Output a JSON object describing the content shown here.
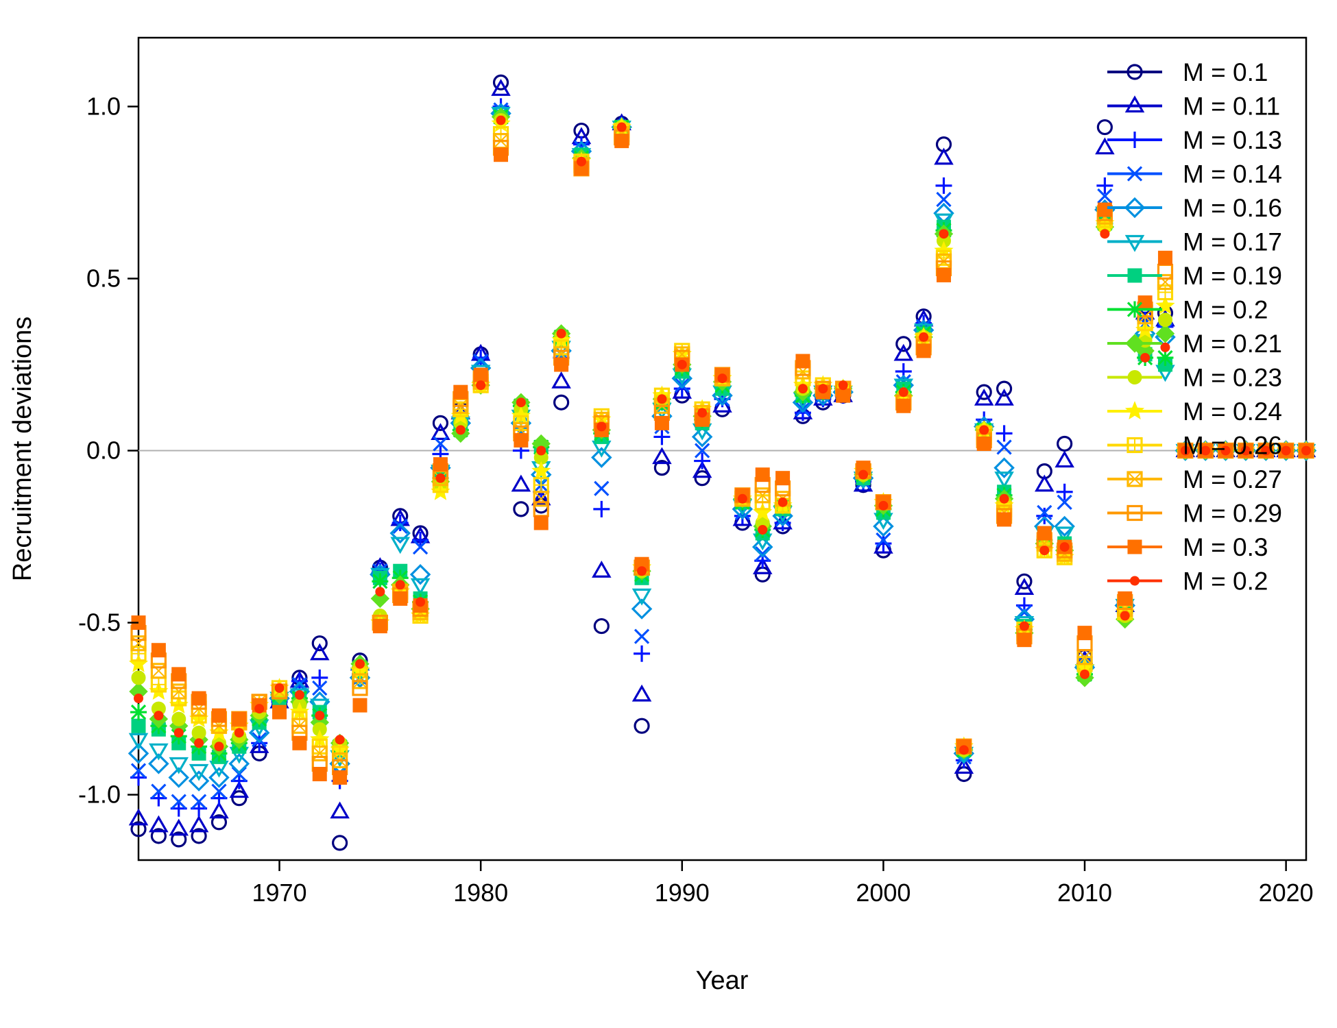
{
  "chart_data": {
    "type": "scatter",
    "title": "",
    "xlabel": "Year",
    "ylabel": "Recruitment deviations",
    "xlim": [
      1963,
      2021
    ],
    "ylim": [
      -1.19,
      1.2
    ],
    "x_ticks": [
      1970,
      1980,
      1990,
      2000,
      2010,
      2020
    ],
    "y_ticks": [
      -1.0,
      -0.5,
      0.0,
      0.5,
      1.0
    ],
    "y_tick_labels": [
      "-1.0",
      "-0.5",
      "0.0",
      "0.5",
      "1.0"
    ],
    "reference_line": 0,
    "grid": false,
    "legend_position": "top-right",
    "x": [
      1963,
      1964,
      1965,
      1966,
      1967,
      1968,
      1969,
      1970,
      1971,
      1972,
      1973,
      1974,
      1975,
      1976,
      1977,
      1978,
      1979,
      1980,
      1981,
      1982,
      1983,
      1984,
      1985,
      1986,
      1987,
      1988,
      1989,
      1990,
      1991,
      1992,
      1993,
      1994,
      1995,
      1996,
      1997,
      1998,
      1999,
      2000,
      2001,
      2002,
      2003,
      2004,
      2005,
      2006,
      2007,
      2008,
      2009,
      2010,
      2011,
      2012,
      2013,
      2014,
      2015,
      2016,
      2017,
      2018,
      2019,
      2020,
      2021
    ],
    "series": [
      {
        "name": "M = 0.1",
        "color": "#00007F",
        "marker": "circle",
        "values": [
          -1.1,
          -1.12,
          -1.13,
          -1.12,
          -1.08,
          -1.01,
          -0.88,
          -0.74,
          -0.66,
          -0.56,
          -1.14,
          -0.61,
          -0.34,
          -0.19,
          -0.24,
          0.08,
          0.12,
          0.28,
          1.07,
          -0.17,
          -0.16,
          0.14,
          0.93,
          -0.51,
          0.95,
          -0.8,
          -0.05,
          0.16,
          -0.08,
          0.12,
          -0.21,
          -0.36,
          -0.22,
          0.1,
          0.14,
          0.16,
          -0.1,
          -0.29,
          0.31,
          0.39,
          0.89,
          -0.94,
          0.17,
          0.18,
          -0.38,
          -0.06,
          0.02,
          -0.6,
          0.94,
          -0.46,
          0.42,
          0.4,
          0,
          0,
          0,
          0,
          0,
          0,
          0
        ]
      },
      {
        "name": "M = 0.11",
        "color": "#0000C8",
        "marker": "triangle",
        "values": [
          -1.07,
          -1.09,
          -1.1,
          -1.09,
          -1.05,
          -0.99,
          -0.86,
          -0.73,
          -0.67,
          -0.59,
          -1.05,
          -0.62,
          -0.34,
          -0.2,
          -0.25,
          0.05,
          0.11,
          0.28,
          1.05,
          -0.1,
          -0.14,
          0.2,
          0.91,
          -0.35,
          0.95,
          -0.71,
          -0.02,
          0.17,
          -0.06,
          0.13,
          -0.2,
          -0.34,
          -0.21,
          0.11,
          0.15,
          0.16,
          -0.1,
          -0.28,
          0.28,
          0.38,
          0.85,
          -0.92,
          0.15,
          0.15,
          -0.4,
          -0.1,
          -0.03,
          -0.61,
          0.88,
          -0.45,
          0.4,
          0.38,
          0,
          0,
          0,
          0,
          0,
          0,
          0
        ]
      },
      {
        "name": "M = 0.13",
        "color": "#0014FF",
        "marker": "plus",
        "values": [
          -0.95,
          -1.01,
          -1.04,
          -1.04,
          -1.01,
          -0.96,
          -0.85,
          -0.73,
          -0.67,
          -0.66,
          -0.96,
          -0.65,
          -0.35,
          -0.21,
          -0.26,
          -0.01,
          0.1,
          0.27,
          1.0,
          0.0,
          -0.12,
          0.27,
          0.89,
          -0.17,
          0.94,
          -0.59,
          0.04,
          0.18,
          -0.03,
          0.15,
          -0.19,
          -0.32,
          -0.21,
          0.11,
          0.15,
          0.16,
          -0.09,
          -0.27,
          0.23,
          0.37,
          0.77,
          -0.9,
          0.09,
          0.05,
          -0.45,
          -0.19,
          -0.12,
          -0.62,
          0.77,
          -0.44,
          0.38,
          0.36,
          0,
          0,
          0,
          0,
          0,
          0,
          0
        ]
      },
      {
        "name": "M = 0.14",
        "color": "#0050FF",
        "marker": "cross",
        "values": [
          -0.93,
          -0.99,
          -1.02,
          -1.02,
          -0.99,
          -0.94,
          -0.84,
          -0.73,
          -0.68,
          -0.69,
          -0.94,
          -0.66,
          -0.35,
          -0.22,
          -0.28,
          0.02,
          0.1,
          0.26,
          0.99,
          0.05,
          -0.1,
          0.28,
          0.88,
          -0.11,
          0.94,
          -0.54,
          0.07,
          0.19,
          0.0,
          0.15,
          -0.18,
          -0.3,
          -0.2,
          0.12,
          0.16,
          0.17,
          -0.09,
          -0.26,
          0.2,
          0.36,
          0.73,
          -0.89,
          0.07,
          0.01,
          -0.47,
          -0.18,
          -0.15,
          -0.62,
          0.74,
          -0.44,
          0.37,
          0.35,
          0,
          0,
          0,
          0,
          0,
          0,
          0
        ]
      },
      {
        "name": "M = 0.16",
        "color": "#0090E0",
        "marker": "diamond",
        "values": [
          -0.88,
          -0.91,
          -0.95,
          -0.96,
          -0.95,
          -0.91,
          -0.82,
          -0.72,
          -0.7,
          -0.73,
          -0.91,
          -0.66,
          -0.36,
          -0.24,
          -0.36,
          -0.05,
          0.08,
          0.24,
          0.98,
          0.08,
          -0.07,
          0.29,
          0.87,
          -0.02,
          0.94,
          -0.46,
          0.1,
          0.21,
          0.04,
          0.16,
          -0.17,
          -0.28,
          -0.19,
          0.14,
          0.16,
          0.17,
          -0.08,
          -0.22,
          0.19,
          0.35,
          0.69,
          -0.88,
          0.07,
          -0.05,
          -0.49,
          -0.22,
          -0.22,
          -0.63,
          0.7,
          -0.45,
          0.34,
          0.33,
          0,
          0,
          0,
          0,
          0,
          0,
          0
        ]
      },
      {
        "name": "M = 0.17",
        "color": "#00B0C8",
        "marker": "triangle-down",
        "values": [
          -0.84,
          -0.87,
          -0.91,
          -0.93,
          -0.92,
          -0.88,
          -0.8,
          -0.72,
          -0.71,
          -0.74,
          -0.89,
          -0.65,
          -0.36,
          -0.27,
          -0.39,
          -0.06,
          0.08,
          0.23,
          0.98,
          0.1,
          -0.05,
          0.3,
          0.86,
          0.01,
          0.94,
          -0.42,
          0.12,
          0.22,
          0.06,
          0.17,
          -0.16,
          -0.26,
          -0.18,
          0.15,
          0.17,
          0.17,
          -0.08,
          -0.2,
          0.19,
          0.35,
          0.67,
          -0.88,
          0.06,
          -0.08,
          -0.5,
          -0.24,
          -0.24,
          -0.64,
          0.69,
          -0.45,
          0.32,
          0.23,
          0,
          0,
          0,
          0,
          0,
          0,
          0
        ]
      },
      {
        "name": "M = 0.19",
        "color": "#00D080",
        "marker": "square",
        "values": [
          -0.8,
          -0.81,
          -0.85,
          -0.88,
          -0.89,
          -0.86,
          -0.79,
          -0.72,
          -0.72,
          -0.76,
          -0.87,
          -0.64,
          -0.37,
          -0.35,
          -0.43,
          -0.07,
          0.07,
          0.21,
          0.97,
          0.12,
          0.01,
          0.32,
          0.86,
          0.04,
          0.94,
          -0.37,
          0.14,
          0.23,
          0.08,
          0.18,
          -0.15,
          -0.24,
          -0.17,
          0.16,
          0.17,
          0.18,
          -0.08,
          -0.18,
          0.18,
          0.34,
          0.65,
          -0.87,
          0.06,
          -0.12,
          -0.51,
          -0.25,
          -0.27,
          -0.64,
          0.67,
          -0.46,
          0.28,
          0.25,
          0,
          0,
          0,
          0,
          0,
          0,
          0
        ]
      },
      {
        "name": "M = 0.2",
        "color": "#00E030",
        "marker": "asterisk",
        "values": [
          -0.76,
          -0.8,
          -0.83,
          -0.86,
          -0.88,
          -0.85,
          -0.78,
          -0.71,
          -0.72,
          -0.77,
          -0.86,
          -0.63,
          -0.38,
          -0.37,
          -0.44,
          -0.08,
          0.06,
          0.2,
          0.97,
          0.13,
          0.01,
          0.33,
          0.85,
          0.05,
          0.94,
          -0.36,
          0.14,
          0.24,
          0.09,
          0.19,
          -0.15,
          -0.23,
          -0.16,
          0.16,
          0.17,
          0.18,
          -0.07,
          -0.17,
          0.17,
          0.34,
          0.64,
          -0.87,
          0.06,
          -0.13,
          -0.52,
          -0.26,
          -0.28,
          -0.65,
          0.66,
          -0.47,
          0.27,
          0.27,
          0,
          0,
          0,
          0,
          0,
          0,
          0
        ]
      },
      {
        "name": "M = 0.21",
        "color": "#60E020",
        "marker": "diamond-filled",
        "values": [
          -0.7,
          -0.78,
          -0.8,
          -0.84,
          -0.86,
          -0.84,
          -0.77,
          -0.71,
          -0.73,
          -0.79,
          -0.85,
          -0.62,
          -0.43,
          -0.39,
          -0.46,
          -0.09,
          0.05,
          0.19,
          0.97,
          0.14,
          0.02,
          0.34,
          0.85,
          0.06,
          0.94,
          -0.35,
          0.15,
          0.25,
          0.1,
          0.2,
          -0.14,
          -0.22,
          -0.16,
          0.17,
          0.18,
          0.18,
          -0.07,
          -0.16,
          0.16,
          0.33,
          0.63,
          -0.87,
          0.06,
          -0.14,
          -0.53,
          -0.27,
          -0.29,
          -0.66,
          0.65,
          -0.49,
          0.29,
          0.34,
          0,
          0,
          0,
          0,
          0,
          0,
          0
        ]
      },
      {
        "name": "M = 0.23",
        "color": "#C8E800",
        "marker": "circle-filled",
        "values": [
          -0.66,
          -0.75,
          -0.78,
          -0.82,
          -0.85,
          -0.83,
          -0.76,
          -0.7,
          -0.74,
          -0.81,
          -0.85,
          -0.63,
          -0.48,
          -0.4,
          -0.47,
          -0.1,
          0.08,
          0.19,
          0.96,
          0.12,
          -0.02,
          0.33,
          0.84,
          0.07,
          0.94,
          -0.35,
          0.15,
          0.26,
          0.11,
          0.21,
          -0.14,
          -0.21,
          -0.16,
          0.18,
          0.18,
          0.18,
          -0.07,
          -0.15,
          0.16,
          0.33,
          0.61,
          -0.87,
          0.06,
          -0.15,
          -0.53,
          -0.28,
          -0.3,
          -0.64,
          0.65,
          -0.48,
          0.32,
          0.38,
          0,
          0,
          0,
          0,
          0,
          0,
          0
        ]
      },
      {
        "name": "M = 0.24",
        "color": "#FFF000",
        "marker": "star",
        "values": [
          -0.62,
          -0.7,
          -0.74,
          -0.78,
          -0.82,
          -0.8,
          -0.74,
          -0.69,
          -0.76,
          -0.84,
          -0.87,
          -0.64,
          -0.5,
          -0.41,
          -0.48,
          -0.12,
          0.1,
          0.19,
          0.95,
          0.1,
          -0.06,
          0.32,
          0.84,
          0.09,
          0.94,
          -0.34,
          0.16,
          0.28,
          0.12,
          0.21,
          -0.14,
          -0.18,
          -0.16,
          0.19,
          0.19,
          0.18,
          -0.06,
          -0.15,
          0.15,
          0.33,
          0.58,
          -0.86,
          0.06,
          -0.16,
          -0.52,
          -0.29,
          -0.31,
          -0.63,
          0.66,
          -0.47,
          0.35,
          0.42,
          0,
          0,
          0,
          0,
          0,
          0,
          0
        ]
      },
      {
        "name": "M = 0.26",
        "color": "#FFD800",
        "marker": "square-plus",
        "values": [
          -0.59,
          -0.68,
          -0.72,
          -0.77,
          -0.8,
          -0.79,
          -0.73,
          -0.69,
          -0.78,
          -0.86,
          -0.88,
          -0.65,
          -0.5,
          -0.41,
          -0.48,
          -0.1,
          0.12,
          0.19,
          0.92,
          0.08,
          -0.1,
          0.3,
          0.84,
          0.1,
          0.93,
          -0.34,
          0.16,
          0.29,
          0.12,
          0.21,
          -0.14,
          -0.15,
          -0.16,
          0.21,
          0.19,
          0.18,
          -0.06,
          -0.15,
          0.14,
          0.32,
          0.56,
          -0.86,
          0.05,
          -0.17,
          -0.52,
          -0.29,
          -0.31,
          -0.62,
          0.67,
          -0.47,
          0.37,
          0.46,
          0,
          0,
          0,
          0,
          0,
          0,
          0
        ]
      },
      {
        "name": "M = 0.27",
        "color": "#FFB800",
        "marker": "square-cross",
        "values": [
          -0.56,
          -0.64,
          -0.7,
          -0.75,
          -0.8,
          -0.79,
          -0.73,
          -0.7,
          -0.8,
          -0.88,
          -0.9,
          -0.67,
          -0.5,
          -0.41,
          -0.47,
          -0.08,
          0.13,
          0.2,
          0.9,
          0.06,
          -0.14,
          0.28,
          0.83,
          0.09,
          0.92,
          -0.34,
          0.13,
          0.28,
          0.11,
          0.21,
          -0.14,
          -0.13,
          -0.14,
          0.23,
          0.18,
          0.18,
          -0.06,
          -0.15,
          0.14,
          0.31,
          0.55,
          -0.86,
          0.04,
          -0.18,
          -0.53,
          -0.27,
          -0.3,
          -0.6,
          0.68,
          -0.46,
          0.39,
          0.49,
          0,
          0,
          0,
          0,
          0,
          0,
          0
        ]
      },
      {
        "name": "M = 0.29",
        "color": "#FF9800",
        "marker": "square-hollow",
        "values": [
          -0.53,
          -0.61,
          -0.67,
          -0.73,
          -0.78,
          -0.78,
          -0.73,
          -0.7,
          -0.82,
          -0.91,
          -0.92,
          -0.69,
          -0.5,
          -0.42,
          -0.46,
          -0.06,
          0.15,
          0.21,
          0.88,
          0.05,
          -0.17,
          0.27,
          0.82,
          0.08,
          0.91,
          -0.34,
          0.11,
          0.27,
          0.1,
          0.22,
          -0.13,
          -0.1,
          -0.11,
          0.24,
          0.18,
          0.18,
          -0.06,
          -0.15,
          0.14,
          0.3,
          0.53,
          -0.86,
          0.03,
          -0.19,
          -0.54,
          -0.26,
          -0.29,
          -0.56,
          0.69,
          -0.44,
          0.41,
          0.52,
          0,
          0,
          0,
          0,
          0,
          0,
          0
        ]
      },
      {
        "name": "M = 0.3",
        "color": "#FF7000",
        "marker": "square-filled",
        "values": [
          -0.5,
          -0.58,
          -0.65,
          -0.72,
          -0.77,
          -0.78,
          -0.74,
          -0.76,
          -0.85,
          -0.94,
          -0.95,
          -0.74,
          -0.51,
          -0.43,
          -0.45,
          -0.04,
          0.17,
          0.22,
          0.86,
          0.03,
          -0.21,
          0.25,
          0.82,
          0.06,
          0.9,
          -0.33,
          0.08,
          0.25,
          0.09,
          0.22,
          -0.13,
          -0.07,
          -0.08,
          0.26,
          0.17,
          0.16,
          -0.05,
          -0.15,
          0.13,
          0.29,
          0.51,
          -0.86,
          0.02,
          -0.2,
          -0.55,
          -0.24,
          -0.28,
          -0.53,
          0.7,
          -0.43,
          0.43,
          0.56,
          0,
          0,
          0,
          0,
          0,
          0,
          0
        ]
      },
      {
        "name": "M = 0.2",
        "color": "#FF3000",
        "marker": "dot",
        "values": [
          -0.72,
          -0.77,
          -0.82,
          -0.85,
          -0.86,
          -0.82,
          -0.75,
          -0.69,
          -0.71,
          -0.77,
          -0.84,
          -0.62,
          -0.41,
          -0.39,
          -0.44,
          -0.08,
          0.06,
          0.19,
          0.96,
          0.14,
          0.0,
          0.34,
          0.84,
          0.07,
          0.94,
          -0.35,
          0.15,
          0.25,
          0.11,
          0.21,
          -0.14,
          -0.23,
          -0.15,
          0.18,
          0.18,
          0.19,
          -0.07,
          -0.16,
          0.17,
          0.33,
          0.63,
          -0.87,
          0.06,
          -0.14,
          -0.51,
          -0.29,
          -0.28,
          -0.65,
          0.63,
          -0.48,
          0.27,
          0.3,
          0,
          0,
          0,
          0,
          0,
          0,
          0
        ]
      }
    ]
  }
}
